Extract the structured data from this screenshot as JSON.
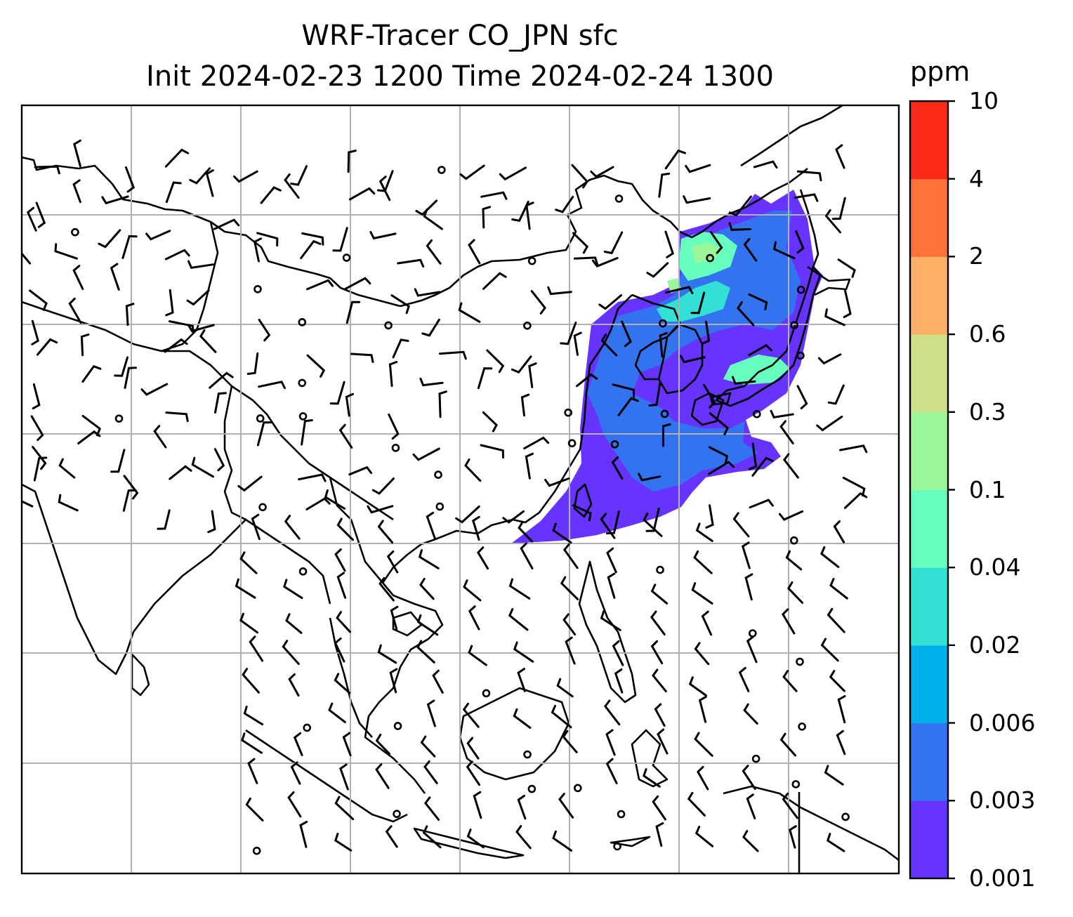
{
  "title": {
    "line1": "WRF-Tracer CO_JPN sfc",
    "line2": "Init 2024-02-23 1200 Time 2024-02-24 1300"
  },
  "colorbar": {
    "unit": "ppm",
    "ticks": [
      "0.001",
      "0.003",
      "0.006",
      "0.02",
      "0.04",
      "0.1",
      "0.3",
      "0.6",
      "2",
      "4",
      "10"
    ],
    "colors": [
      "#6633ff",
      "#3373f0",
      "#00b0eb",
      "#33e0d4",
      "#66ffbf",
      "#99f799",
      "#cce088",
      "#ffb066",
      "#ff733a",
      "#ff2b1a"
    ]
  },
  "map": {
    "tracer": "CO_JPN",
    "level": "sfc",
    "gridline_color": "#b0b0b0",
    "coastline_color": "#000000",
    "wind_barbs": true
  }
}
